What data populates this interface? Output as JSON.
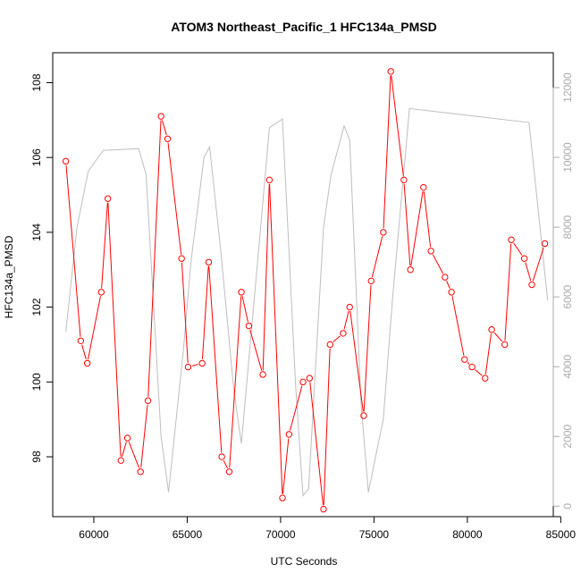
{
  "chart_data": {
    "type": "line",
    "title": "ATOM3 Northeast_Pacific_1 HFC134a_PMSD",
    "xlabel": "UTC Seconds",
    "ylabel": "HFC134a_PMSD",
    "xlim": [
      57800,
      84600
    ],
    "ylim": [
      96.4,
      108.8
    ],
    "y2lim": [
      -300,
      13000
    ],
    "xticks": [
      60000,
      65000,
      70000,
      75000,
      80000,
      85000
    ],
    "yticks": [
      98,
      100,
      102,
      104,
      106,
      108
    ],
    "y2ticks": [
      0,
      2000,
      4000,
      6000,
      8000,
      10000,
      12000
    ],
    "grid": false,
    "series": [
      {
        "color": "#ff0000",
        "axis": "left",
        "points": [
          [
            58500,
            105.9
          ],
          [
            59300,
            101.1
          ],
          [
            59650,
            100.5
          ],
          [
            60400,
            102.4
          ],
          [
            60750,
            104.9
          ],
          [
            61450,
            97.9
          ],
          [
            61800,
            98.5
          ],
          [
            62500,
            97.6
          ],
          [
            62900,
            99.5
          ],
          [
            63600,
            107.1
          ],
          [
            63950,
            106.5
          ],
          [
            64700,
            103.3
          ],
          [
            65050,
            100.4
          ],
          [
            65800,
            100.5
          ],
          [
            66150,
            103.2
          ],
          [
            66850,
            98.0
          ],
          [
            67250,
            97.6
          ],
          [
            67900,
            102.4
          ],
          [
            68300,
            101.5
          ],
          [
            69050,
            100.2
          ],
          [
            69400,
            105.4
          ],
          [
            70100,
            96.9
          ],
          [
            70450,
            98.6
          ],
          [
            71200,
            100.0
          ],
          [
            71550,
            100.1
          ],
          [
            72300,
            96.6
          ],
          [
            72650,
            101.0
          ],
          [
            73350,
            101.3
          ],
          [
            73700,
            102.0
          ],
          [
            74450,
            99.1
          ],
          [
            74850,
            102.7
          ],
          [
            75500,
            104.0
          ],
          [
            75900,
            108.3
          ],
          [
            76600,
            105.4
          ],
          [
            76950,
            103.0
          ],
          [
            77650,
            105.2
          ],
          [
            78050,
            103.5
          ],
          [
            78800,
            102.8
          ],
          [
            79150,
            102.4
          ],
          [
            79850,
            100.6
          ],
          [
            80250,
            100.4
          ],
          [
            80950,
            100.1
          ],
          [
            81300,
            101.4
          ],
          [
            82000,
            101.0
          ],
          [
            82350,
            103.8
          ],
          [
            83050,
            103.3
          ],
          [
            83450,
            102.6
          ],
          [
            84150,
            103.7
          ]
        ]
      },
      {
        "color": "#bebebe",
        "axis": "right",
        "points": [
          [
            58500,
            5000
          ],
          [
            59100,
            8000
          ],
          [
            59700,
            9600
          ],
          [
            60500,
            10200
          ],
          [
            62400,
            10250
          ],
          [
            62800,
            9500
          ],
          [
            63600,
            2000
          ],
          [
            64000,
            400
          ],
          [
            64800,
            4500
          ],
          [
            65200,
            7000
          ],
          [
            65900,
            10000
          ],
          [
            66200,
            10300
          ],
          [
            66800,
            7300
          ],
          [
            67500,
            3300
          ],
          [
            67900,
            1800
          ],
          [
            68900,
            7800
          ],
          [
            69400,
            10850
          ],
          [
            70100,
            11100
          ],
          [
            70800,
            3500
          ],
          [
            71200,
            300
          ],
          [
            71500,
            500
          ],
          [
            72300,
            8000
          ],
          [
            72700,
            9500
          ],
          [
            73400,
            10900
          ],
          [
            73700,
            10500
          ],
          [
            74300,
            3000
          ],
          [
            74700,
            400
          ],
          [
            75500,
            2500
          ],
          [
            76000,
            6000
          ],
          [
            76900,
            11400
          ],
          [
            83300,
            11000
          ],
          [
            84300,
            5900
          ]
        ]
      }
    ]
  }
}
